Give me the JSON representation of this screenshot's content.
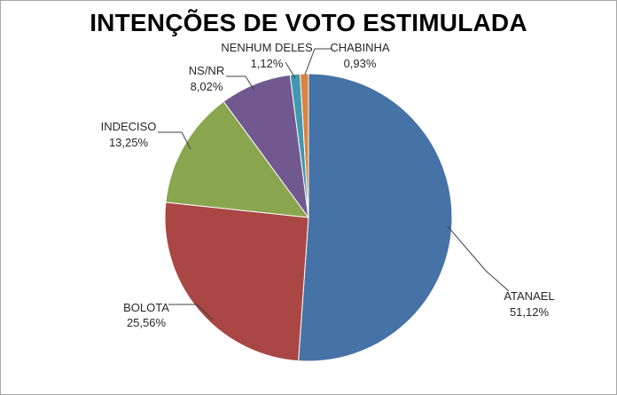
{
  "chart_data": {
    "type": "pie",
    "title": "INTENÇÕES DE VOTO ESTIMULADA",
    "categories": [
      "ATANAEL",
      "BOLOTA",
      "INDECISO",
      "NS/NR",
      "NENHUM DELES",
      "CHABINHA"
    ],
    "values": [
      51.12,
      25.56,
      13.25,
      8.02,
      1.12,
      0.93
    ],
    "value_labels": [
      "51,12%",
      "25,56%",
      "13,25%",
      "8,02%",
      "1,12%",
      "0,93%"
    ],
    "colors": [
      "#4572A7",
      "#AA4643",
      "#89A54E",
      "#71588F",
      "#4198AF",
      "#DB843D"
    ],
    "legend": "none",
    "data_labels": "outside-with-leader-lines"
  }
}
